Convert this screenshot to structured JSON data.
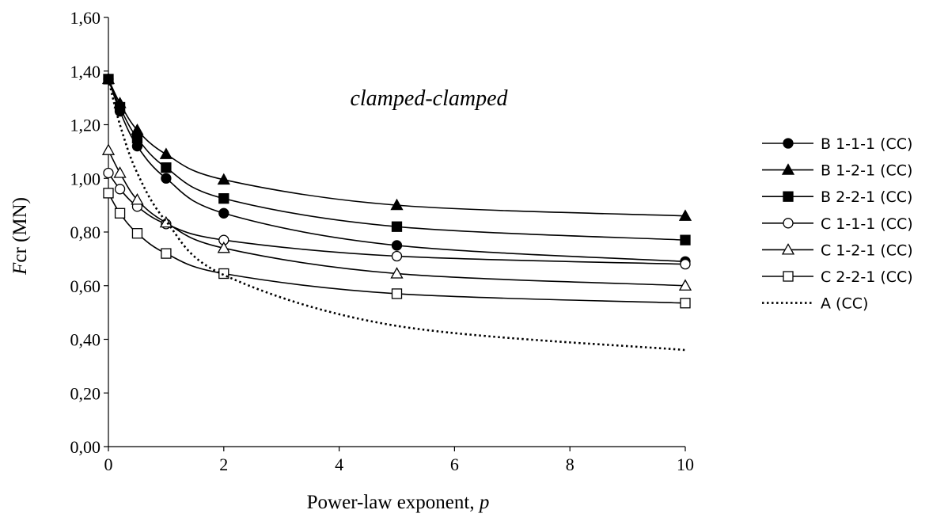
{
  "chart_data": {
    "type": "line",
    "xlabel_text": "Power-law exponent, ",
    "xlabel_var": "p",
    "ylabel_var": "F",
    "ylabel_sub": "cr",
    "ylabel_unit": " (MN)",
    "annotation": "clamped-clamped",
    "xlim": [
      0,
      10
    ],
    "ylim": [
      0,
      1.6
    ],
    "x_ticks": [
      0,
      2,
      4,
      6,
      8,
      10
    ],
    "x_tick_labels": [
      "0",
      "2",
      "4",
      "6",
      "8",
      "10"
    ],
    "y_ticks": [
      0,
      0.2,
      0.4,
      0.6,
      0.8,
      1.0,
      1.2,
      1.4,
      1.6
    ],
    "y_tick_labels": [
      "0,00",
      "0,20",
      "0,40",
      "0,60",
      "0,80",
      "1,00",
      "1,20",
      "1,40",
      "1,60"
    ],
    "legend_position": "right",
    "series": [
      {
        "name": "B 1-1-1 (CC)",
        "marker": "filled-circle",
        "line": "solid",
        "x": [
          0,
          0.2,
          0.5,
          1,
          2,
          5,
          10
        ],
        "y": [
          1.37,
          1.25,
          1.12,
          1.0,
          0.87,
          0.75,
          0.69
        ]
      },
      {
        "name": "B 1-2-1 (CC)",
        "marker": "filled-triangle",
        "line": "solid",
        "x": [
          0,
          0.2,
          0.5,
          1,
          2,
          5,
          10
        ],
        "y": [
          1.37,
          1.28,
          1.18,
          1.09,
          0.995,
          0.9,
          0.86
        ]
      },
      {
        "name": "B 2-2-1 (CC)",
        "marker": "filled-square",
        "line": "solid",
        "x": [
          0,
          0.2,
          0.5,
          1,
          2,
          5,
          10
        ],
        "y": [
          1.37,
          1.265,
          1.15,
          1.04,
          0.925,
          0.82,
          0.77
        ]
      },
      {
        "name": "C 1-1-1 (CC)",
        "marker": "open-circle",
        "line": "solid",
        "x": [
          0,
          0.2,
          0.5,
          1,
          2,
          5,
          10
        ],
        "y": [
          1.02,
          0.96,
          0.895,
          0.83,
          0.77,
          0.71,
          0.68
        ]
      },
      {
        "name": "C 1-2-1 (CC)",
        "marker": "open-triangle",
        "line": "solid",
        "x": [
          0,
          0.2,
          0.5,
          1,
          2,
          5,
          10
        ],
        "y": [
          1.105,
          1.02,
          0.92,
          0.835,
          0.74,
          0.645,
          0.6
        ]
      },
      {
        "name": "C 2-2-1 (CC)",
        "marker": "open-square",
        "line": "solid",
        "x": [
          0,
          0.2,
          0.5,
          1,
          2,
          5,
          10
        ],
        "y": [
          0.945,
          0.87,
          0.795,
          0.72,
          0.645,
          0.57,
          0.535
        ]
      },
      {
        "name": "A (CC)",
        "marker": "none",
        "line": "dotted",
        "x": [
          0,
          0.2,
          0.5,
          1,
          2,
          5,
          10
        ],
        "y": [
          1.37,
          1.2,
          1.02,
          0.84,
          0.64,
          0.45,
          0.36
        ]
      }
    ]
  }
}
